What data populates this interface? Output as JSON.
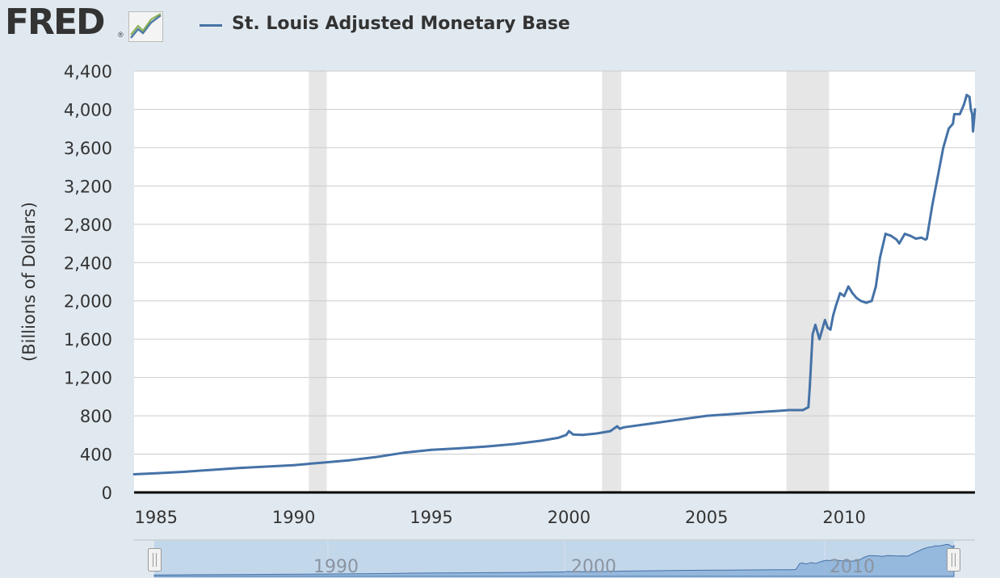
{
  "header": {
    "logo_text": "FRED",
    "logo_registered": "®",
    "logo_icon": "trend-graph-icon"
  },
  "legend": {
    "series_name": "St. Louis Adjusted Monetary Base",
    "color": "#4572a7"
  },
  "chart_data": {
    "type": "line",
    "title": "",
    "ylabel": "(Billions of Dollars)",
    "xlabel": "",
    "xlim": [
      1984.2,
      2014.75
    ],
    "ylim": [
      0,
      4400
    ],
    "yticks": [
      0,
      400,
      800,
      1200,
      1600,
      2000,
      2400,
      2800,
      3200,
      3600,
      4000,
      4400
    ],
    "ytick_labels": [
      "0",
      "400",
      "800",
      "1,200",
      "1,600",
      "2,000",
      "2,400",
      "2,800",
      "3,200",
      "3,600",
      "4,000",
      "4,400"
    ],
    "xticks": [
      1985,
      1990,
      1995,
      2000,
      2005,
      2010
    ],
    "xtick_labels": [
      "1985",
      "1990",
      "1995",
      "2000",
      "2005",
      "2010"
    ],
    "grid": true,
    "recessions": [
      [
        1990.55,
        1991.2
      ],
      [
        2001.2,
        2001.9
      ],
      [
        2007.9,
        2009.45
      ]
    ],
    "series": [
      {
        "name": "St. Louis Adjusted Monetary Base",
        "color": "#4572a7",
        "x": [
          1984.2,
          1985,
          1986,
          1987,
          1988,
          1989,
          1990,
          1991,
          1992,
          1993,
          1994,
          1995,
          1996,
          1997,
          1998,
          1999,
          1999.6,
          1999.9,
          2000.0,
          2000.15,
          2000.5,
          2001,
          2001.5,
          2001.75,
          2001.85,
          2002,
          2003,
          2004,
          2005,
          2006,
          2007,
          2007.5,
          2008,
          2008.5,
          2008.7,
          2008.75,
          2008.85,
          2008.95,
          2009.1,
          2009.2,
          2009.3,
          2009.4,
          2009.5,
          2009.6,
          2009.7,
          2009.85,
          2010.0,
          2010.15,
          2010.3,
          2010.45,
          2010.6,
          2010.8,
          2011.0,
          2011.15,
          2011.3,
          2011.5,
          2011.7,
          2011.9,
          2012.0,
          2012.2,
          2012.4,
          2012.6,
          2012.8,
          2012.95,
          2013.0,
          2013.2,
          2013.4,
          2013.6,
          2013.8,
          2013.95,
          2014.0,
          2014.2,
          2014.35,
          2014.45,
          2014.55,
          2014.6,
          2014.65,
          2014.68,
          2014.75
        ],
        "y": [
          190,
          200,
          215,
          235,
          255,
          270,
          285,
          310,
          335,
          370,
          415,
          445,
          460,
          480,
          505,
          540,
          570,
          600,
          640,
          605,
          600,
          615,
          640,
          690,
          665,
          680,
          720,
          760,
          800,
          820,
          840,
          850,
          860,
          860,
          890,
          1100,
          1650,
          1750,
          1600,
          1700,
          1800,
          1720,
          1700,
          1850,
          1950,
          2080,
          2050,
          2150,
          2080,
          2030,
          2000,
          1980,
          2000,
          2150,
          2450,
          2700,
          2680,
          2640,
          2600,
          2700,
          2680,
          2650,
          2660,
          2640,
          2650,
          3000,
          3300,
          3600,
          3800,
          3850,
          3950,
          3950,
          4050,
          4150,
          4130,
          4000,
          3950,
          3770,
          4000
        ]
      }
    ]
  },
  "navigator": {
    "labels": [
      "1990",
      "2000",
      "2010"
    ]
  }
}
